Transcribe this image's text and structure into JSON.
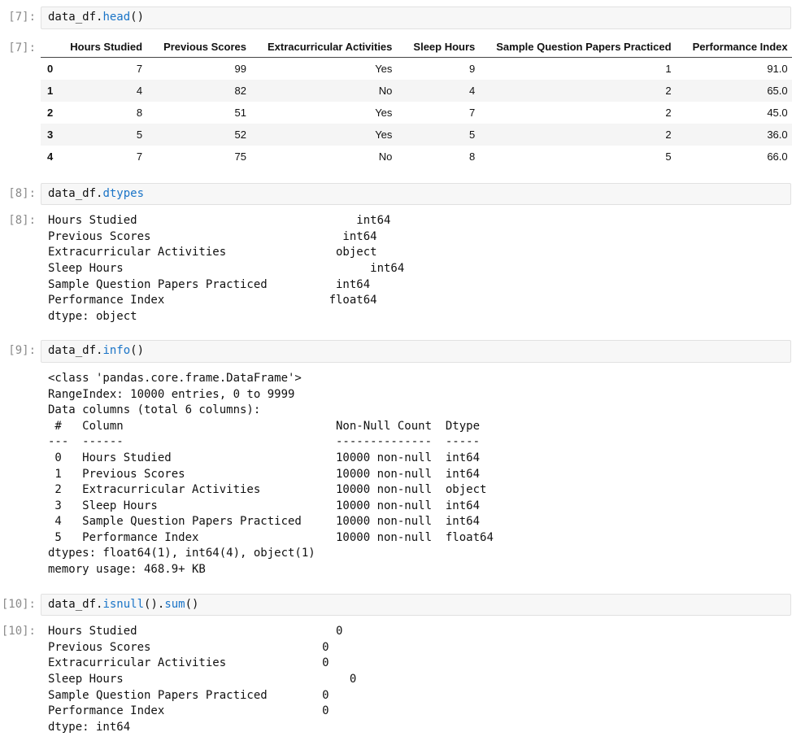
{
  "colors": {
    "code-function": "#1a74c7",
    "prompt": "#8a8a8a",
    "input-background": "#f7f7f7",
    "input-border": "#e1e1e1",
    "row-stripe": "#f5f5f5",
    "header-rule": "#454545"
  },
  "cells": [
    {
      "input_prompt": "[7]:",
      "output_prompt": "[7]:",
      "code": {
        "obj": "data_df.",
        "fn": "head",
        "post": "()"
      },
      "table": {
        "index_header": "",
        "columns": [
          "Hours Studied",
          "Previous Scores",
          "Extracurricular Activities",
          "Sleep Hours",
          "Sample Question Papers Practiced",
          "Performance Index"
        ],
        "rows": [
          {
            "index": "0",
            "values": [
              "7",
              "99",
              "Yes",
              "9",
              "1",
              "91.0"
            ]
          },
          {
            "index": "1",
            "values": [
              "4",
              "82",
              "No",
              "4",
              "2",
              "65.0"
            ]
          },
          {
            "index": "2",
            "values": [
              "8",
              "51",
              "Yes",
              "7",
              "2",
              "45.0"
            ]
          },
          {
            "index": "3",
            "values": [
              "5",
              "52",
              "Yes",
              "5",
              "2",
              "36.0"
            ]
          },
          {
            "index": "4",
            "values": [
              "7",
              "75",
              "No",
              "8",
              "5",
              "66.0"
            ]
          }
        ]
      }
    },
    {
      "input_prompt": "[8]:",
      "output_prompt": "[8]:",
      "code": {
        "obj": "data_df.",
        "fn": "dtypes",
        "post": ""
      },
      "output_text": "Hours Studied                                int64\nPrevious Scores                            int64\nExtracurricular Activities                object\nSleep Hours                                    int64\nSample Question Papers Practiced          int64\nPerformance Index                        float64\ndtype: object"
    },
    {
      "input_prompt": "[9]:",
      "output_prompt": "",
      "code": {
        "obj": "data_df.",
        "fn": "info",
        "post": "()"
      },
      "output_text": "<class 'pandas.core.frame.DataFrame'>\nRangeIndex: 10000 entries, 0 to 9999\nData columns (total 6 columns):\n #   Column                               Non-Null Count  Dtype\n---  ------                               --------------  -----\n 0   Hours Studied                        10000 non-null  int64\n 1   Previous Scores                      10000 non-null  int64\n 2   Extracurricular Activities           10000 non-null  object\n 3   Sleep Hours                          10000 non-null  int64\n 4   Sample Question Papers Practiced     10000 non-null  int64\n 5   Performance Index                    10000 non-null  float64\ndtypes: float64(1), int64(4), object(1)\nmemory usage: 468.9+ KB"
    },
    {
      "input_prompt": "[10]:",
      "output_prompt": "[10]:",
      "code": {
        "obj": "data_df.",
        "fn": "isnull",
        "mid": "().",
        "fn2": "sum",
        "post": "()"
      },
      "output_text": "Hours Studied                             0\nPrevious Scores                         0\nExtracurricular Activities              0\nSleep Hours                                 0\nSample Question Papers Practiced        0\nPerformance Index                       0\ndtype: int64"
    }
  ]
}
